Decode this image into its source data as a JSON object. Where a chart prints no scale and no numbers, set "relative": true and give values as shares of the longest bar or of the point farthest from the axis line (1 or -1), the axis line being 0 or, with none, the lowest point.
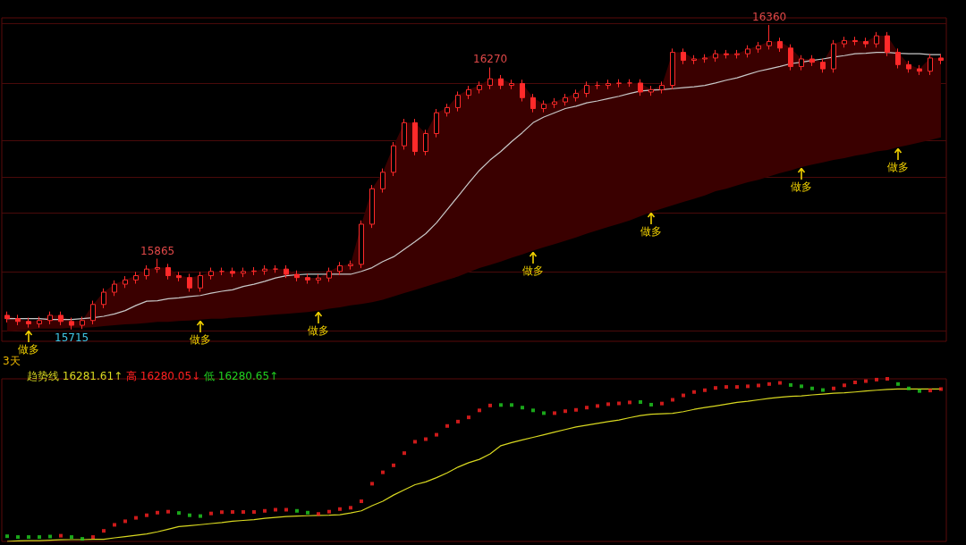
{
  "chart_data": [
    {
      "type": "candlestick",
      "categories": [
        null,
        null,
        null,
        null,
        null,
        null,
        null,
        null,
        null,
        null,
        null,
        null,
        null,
        null,
        null,
        null,
        null,
        null,
        null,
        null,
        null,
        null,
        null,
        null,
        null,
        null,
        null,
        null,
        null,
        null,
        null,
        null,
        null,
        null,
        null,
        null,
        null,
        null,
        null,
        null,
        null,
        null,
        null,
        null,
        null,
        null,
        null,
        null,
        null,
        null,
        null,
        null,
        null,
        null,
        null,
        null,
        null,
        null,
        null,
        null,
        null,
        null,
        null,
        null,
        null,
        null,
        null,
        null,
        null,
        null,
        null,
        null,
        null,
        null,
        null,
        null,
        null,
        null,
        null,
        null,
        null,
        null,
        null,
        null,
        null,
        null,
        null,
        null
      ],
      "series": [
        {
          "type": "line",
          "color": "#c8c8c8",
          "values": [
            15738,
            15738,
            15738,
            15738,
            15736,
            15736,
            15736,
            15738,
            15740,
            15743,
            15748,
            15755,
            15766,
            15775,
            15776,
            15780,
            15782,
            15785,
            15787,
            15792,
            15796,
            15799,
            15806,
            15811,
            15817,
            15824,
            15829,
            15831,
            15832,
            15832,
            15832,
            15832,
            15832,
            15838,
            15846,
            15859,
            15869,
            15885,
            15901,
            15918,
            15941,
            15969,
            15997,
            16025,
            16052,
            16074,
            16092,
            16113,
            16132,
            16153,
            16165,
            16174,
            16183,
            16188,
            16195,
            16199,
            16204,
            16209,
            16215,
            16220,
            16222,
            16223,
            16225,
            16227,
            16229,
            16232,
            16237,
            16243,
            16248,
            16255,
            16262,
            16267,
            16272,
            16278,
            16281,
            16285,
            16288,
            16292,
            16295,
            16299,
            16300,
            16302,
            16302,
            16300,
            16299,
            16299,
            16297,
            16297
          ],
          "lower": [
            15711,
            15713,
            15714,
            15717,
            15717,
            15717,
            15719,
            15719,
            15720,
            15722,
            15724,
            15726,
            15727,
            15729,
            15731,
            15731,
            15733,
            15734,
            15736,
            15738,
            15738,
            15740,
            15741,
            15743,
            15745,
            15747,
            15748,
            15750,
            15752,
            15755,
            15759,
            15762,
            15766,
            15769,
            15773,
            15778,
            15785,
            15792,
            15799,
            15806,
            15813,
            15820,
            15827,
            15836,
            15845,
            15852,
            15859,
            15867,
            15874,
            15882,
            15889,
            15896,
            15903,
            15910,
            15918,
            15925,
            15932,
            15939,
            15946,
            15955,
            15964,
            15971,
            15978,
            15985,
            15992,
            15999,
            16008,
            16013,
            16020,
            16027,
            16032,
            16039,
            16046,
            16052,
            16059,
            16064,
            16069,
            16074,
            16078,
            16083,
            16087,
            16092,
            16095,
            16101,
            16106,
            16111,
            16116,
            16122
          ],
          "upper": [
            15745,
            15738,
            15732,
            15734,
            15745,
            15745,
            15732,
            15734,
            15768,
            15794,
            15811,
            15820,
            15829,
            15843,
            15846,
            15846,
            15829,
            15825,
            15829,
            15838,
            15838,
            15838,
            15838,
            15839,
            15843,
            15843,
            15843,
            15832,
            15825,
            15824,
            15838,
            15850,
            15853,
            15938,
            16013,
            16048,
            16104,
            16153,
            16153,
            16130,
            16174,
            16185,
            16211,
            16223,
            16232,
            16246,
            16246,
            16236,
            16236,
            16206,
            16192,
            16197,
            16206,
            16215,
            16232,
            16232,
            16236,
            16237,
            16237,
            16237,
            16223,
            16232,
            16302,
            16302,
            16288,
            16290,
            16299,
            16299,
            16299,
            16309,
            16316,
            16325,
            16325,
            16311,
            16288,
            16288,
            16281,
            16320,
            16327,
            16327,
            16325,
            16337,
            16337,
            16302,
            16276,
            16267,
            16290,
            16290
          ]
        },
        {
          "type": "candlestick",
          "color": "#ff2a2a",
          "ohlc": [
            [
              15745,
              15753,
              15730,
              15738
            ],
            [
              15738,
              15746,
              15724,
              15732
            ],
            [
              15732,
              15740,
              15719,
              15727
            ],
            [
              15727,
              15742,
              15719,
              15734
            ],
            [
              15734,
              15753,
              15726,
              15745
            ],
            [
              15745,
              15753,
              15724,
              15732
            ],
            [
              15732,
              15740,
              15715,
              15724
            ],
            [
              15724,
              15742,
              15716,
              15734
            ],
            [
              15734,
              15776,
              15726,
              15768
            ],
            [
              15768,
              15802,
              15760,
              15794
            ],
            [
              15794,
              15819,
              15786,
              15811
            ],
            [
              15811,
              15828,
              15803,
              15820
            ],
            [
              15820,
              15837,
              15812,
              15829
            ],
            [
              15829,
              15851,
              15821,
              15843
            ],
            [
              15843,
              15865,
              15835,
              15846
            ],
            [
              15846,
              15854,
              15821,
              15829
            ],
            [
              15829,
              15837,
              15817,
              15825
            ],
            [
              15825,
              15833,
              15795,
              15803
            ],
            [
              15803,
              15837,
              15795,
              15829
            ],
            [
              15829,
              15846,
              15821,
              15838
            ],
            [
              15838,
              15846,
              15830,
              15838
            ],
            [
              15838,
              15846,
              15826,
              15834
            ],
            [
              15834,
              15846,
              15826,
              15838
            ],
            [
              15838,
              15847,
              15830,
              15839
            ],
            [
              15839,
              15851,
              15831,
              15843
            ],
            [
              15843,
              15851,
              15835,
              15843
            ],
            [
              15843,
              15851,
              15824,
              15832
            ],
            [
              15832,
              15840,
              15817,
              15825
            ],
            [
              15825,
              15833,
              15812,
              15820
            ],
            [
              15820,
              15832,
              15812,
              15824
            ],
            [
              15824,
              15846,
              15816,
              15838
            ],
            [
              15838,
              15858,
              15830,
              15850
            ],
            [
              15850,
              15861,
              15842,
              15853
            ],
            [
              15853,
              15946,
              15845,
              15938
            ],
            [
              15938,
              16021,
              15930,
              16013
            ],
            [
              16013,
              16056,
              16005,
              16048
            ],
            [
              16048,
              16112,
              16040,
              16104
            ],
            [
              16104,
              16161,
              16096,
              16153
            ],
            [
              16153,
              16161,
              16084,
              16092
            ],
            [
              16092,
              16138,
              16084,
              16130
            ],
            [
              16130,
              16182,
              16122,
              16174
            ],
            [
              16174,
              16193,
              16166,
              16185
            ],
            [
              16185,
              16219,
              16177,
              16211
            ],
            [
              16211,
              16231,
              16203,
              16223
            ],
            [
              16223,
              16240,
              16215,
              16232
            ],
            [
              16232,
              16270,
              16224,
              16246
            ],
            [
              16246,
              16254,
              16224,
              16232
            ],
            [
              16232,
              16244,
              16224,
              16236
            ],
            [
              16236,
              16244,
              16198,
              16206
            ],
            [
              16206,
              16214,
              16175,
              16183
            ],
            [
              16183,
              16200,
              16175,
              16192
            ],
            [
              16192,
              16205,
              16184,
              16197
            ],
            [
              16197,
              16214,
              16189,
              16206
            ],
            [
              16206,
              16223,
              16198,
              16215
            ],
            [
              16215,
              16240,
              16207,
              16232
            ],
            [
              16232,
              16240,
              16224,
              16232
            ],
            [
              16232,
              16244,
              16224,
              16236
            ],
            [
              16236,
              16245,
              16228,
              16237
            ],
            [
              16237,
              16245,
              16229,
              16237
            ],
            [
              16237,
              16245,
              16210,
              16218
            ],
            [
              16218,
              16231,
              16210,
              16223
            ],
            [
              16223,
              16240,
              16215,
              16232
            ],
            [
              16232,
              16310,
              16224,
              16302
            ],
            [
              16302,
              16310,
              16277,
              16285
            ],
            [
              16285,
              16296,
              16277,
              16288
            ],
            [
              16288,
              16298,
              16280,
              16290
            ],
            [
              16290,
              16307,
              16282,
              16299
            ],
            [
              16299,
              16307,
              16289,
              16297
            ],
            [
              16297,
              16307,
              16289,
              16299
            ],
            [
              16299,
              16317,
              16291,
              16309
            ],
            [
              16309,
              16324,
              16301,
              16316
            ],
            [
              16316,
              16360,
              16308,
              16325
            ],
            [
              16325,
              16333,
              16303,
              16311
            ],
            [
              16311,
              16319,
              16264,
              16272
            ],
            [
              16272,
              16296,
              16264,
              16288
            ],
            [
              16288,
              16296,
              16273,
              16281
            ],
            [
              16281,
              16289,
              16259,
              16267
            ],
            [
              16267,
              16328,
              16259,
              16320
            ],
            [
              16320,
              16335,
              16312,
              16327
            ],
            [
              16327,
              16335,
              16317,
              16325
            ],
            [
              16325,
              16333,
              16312,
              16320
            ],
            [
              16320,
              16345,
              16312,
              16337
            ],
            [
              16337,
              16345,
              16294,
              16302
            ],
            [
              16302,
              16310,
              16268,
              16276
            ],
            [
              16276,
              16284,
              16259,
              16267
            ],
            [
              16267,
              16275,
              16254,
              16262
            ],
            [
              16262,
              16298,
              16254,
              16290
            ],
            [
              16290,
              16298,
              16277,
              16285
            ]
          ]
        }
      ],
      "ylim": [
        15690,
        16375
      ],
      "yticks": [
        {
          "value": 16364,
          "label": null
        },
        {
          "value": 16237,
          "label": null
        },
        {
          "value": 16115,
          "label": null
        },
        {
          "value": 16037,
          "label": null
        },
        {
          "value": 15962,
          "label": null
        },
        {
          "value": 15838,
          "label": null
        },
        {
          "value": 15712,
          "label": null
        }
      ],
      "grid": "y",
      "tick_labels": false,
      "annotations": [
        "3天",
        {
          "text": "15865",
          "y": 15865
        },
        {
          "text": "16270",
          "y": 16270
        },
        {
          "text": "16360",
          "y": 16360
        },
        {
          "text": "15715",
          "y": 15715
        },
        {
          "text": "做多",
          "y": 15714
        },
        {
          "text": "做多",
          "y": 15736
        },
        {
          "text": "做多",
          "y": 15755
        },
        {
          "text": "做多",
          "y": 15882
        },
        {
          "text": "做多",
          "y": 15964
        },
        {
          "text": "做多",
          "y": 16059
        },
        {
          "text": "做多",
          "y": 16101
        }
      ]
    },
    {
      "type": "line",
      "relative": true,
      "tick_labels": false,
      "categories": [
        null,
        null,
        null,
        null,
        null,
        null,
        null,
        null,
        null,
        null,
        null,
        null,
        null,
        null,
        null,
        null,
        null,
        null,
        null,
        null,
        null,
        null,
        null,
        null,
        null,
        null,
        null,
        null,
        null,
        null,
        null,
        null,
        null,
        null,
        null,
        null,
        null,
        null,
        null,
        null,
        null,
        null,
        null,
        null,
        null,
        null,
        null,
        null,
        null,
        null,
        null,
        null,
        null,
        null,
        null,
        null,
        null,
        null,
        null,
        null,
        null,
        null,
        null,
        null,
        null,
        null,
        null,
        null,
        null,
        null,
        null,
        null,
        null,
        null,
        null,
        null,
        null,
        null,
        null,
        null,
        null,
        null,
        null,
        null,
        null,
        null,
        null,
        null
      ],
      "series": [
        {
          "name": "趋势线",
          "color": "#d8d820",
          "values": [
            0,
            0.003,
            0.005,
            0.005,
            0.008,
            0.01,
            0.011,
            0.011,
            0.013,
            0.013,
            0.022,
            0.03,
            0.038,
            0.046,
            0.059,
            0.075,
            0.091,
            0.097,
            0.103,
            0.11,
            0.116,
            0.124,
            0.129,
            0.134,
            0.142,
            0.148,
            0.153,
            0.156,
            0.158,
            0.16,
            0.161,
            0.164,
            0.175,
            0.188,
            0.22,
            0.247,
            0.285,
            0.317,
            0.349,
            0.366,
            0.392,
            0.422,
            0.457,
            0.484,
            0.505,
            0.538,
            0.589,
            0.608,
            0.624,
            0.64,
            0.656,
            0.672,
            0.688,
            0.704,
            0.715,
            0.726,
            0.737,
            0.747,
            0.761,
            0.774,
            0.782,
            0.785,
            0.788,
            0.798,
            0.812,
            0.823,
            0.833,
            0.844,
            0.855,
            0.862,
            0.871,
            0.88,
            0.887,
            0.892,
            0.895,
            0.901,
            0.906,
            0.911,
            0.914,
            0.919,
            0.925,
            0.93,
            0.935,
            0.937,
            0.937,
            0.937,
            0.937,
            0.937
          ]
        },
        {
          "name": "高",
          "type": "scatter",
          "marker": "square",
          "color": "#ff2020",
          "values": [
            null,
            null,
            null,
            null,
            null,
            0.035,
            null,
            null,
            0.027,
            0.065,
            0.102,
            0.124,
            0.145,
            0.161,
            0.177,
            0.183,
            null,
            null,
            null,
            0.172,
            0.18,
            0.181,
            0.181,
            0.181,
            0.188,
            0.195,
            0.195,
            null,
            null,
            0.169,
            0.183,
            0.199,
            0.207,
            0.247,
            0.355,
            0.425,
            0.468,
            0.543,
            0.613,
            0.629,
            0.656,
            0.71,
            0.737,
            0.763,
            0.806,
            0.836,
            null,
            null,
            null,
            null,
            null,
            0.789,
            0.801,
            0.809,
            0.823,
            0.833,
            0.844,
            0.849,
            0.855,
            null,
            null,
            0.848,
            0.871,
            0.898,
            0.919,
            0.93,
            0.944,
            0.95,
            0.95,
            0.954,
            0.959,
            0.968,
            0.975,
            null,
            null,
            null,
            null,
            0.941,
            0.96,
            0.978,
            0.986,
            0.995,
            1,
            null,
            null,
            null,
            0.928,
            0.937
          ]
        },
        {
          "name": "低",
          "type": "scatter",
          "marker": "square",
          "color": "#20d020",
          "values": [
            0.032,
            0.027,
            0.027,
            0.027,
            0.03,
            null,
            0.027,
            0.016,
            null,
            null,
            null,
            null,
            null,
            null,
            null,
            null,
            0.175,
            0.161,
            0.156,
            null,
            null,
            null,
            null,
            null,
            null,
            null,
            null,
            0.188,
            0.177,
            null,
            null,
            null,
            null,
            null,
            null,
            null,
            null,
            null,
            null,
            null,
            null,
            null,
            null,
            null,
            null,
            null,
            0.839,
            0.839,
            0.823,
            0.806,
            0.789,
            null,
            null,
            null,
            null,
            null,
            null,
            null,
            null,
            0.857,
            0.841,
            null,
            null,
            null,
            null,
            null,
            null,
            null,
            null,
            null,
            null,
            null,
            null,
            0.962,
            0.954,
            0.941,
            0.931,
            null,
            null,
            null,
            null,
            null,
            null,
            0.968,
            0.941,
            0.925,
            null,
            null
          ]
        }
      ],
      "annotations": [
        "16281.61↑",
        "16280.05↓",
        "16280.65↑"
      ]
    }
  ]
}
